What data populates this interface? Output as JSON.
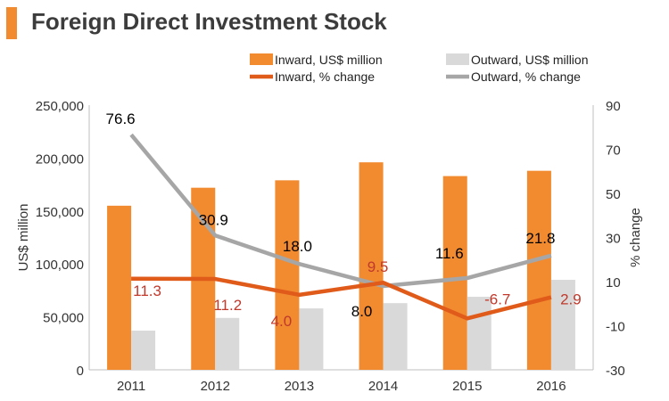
{
  "title": "Foreign Direct Investment Stock",
  "colors": {
    "accent_bar": "#f28b30",
    "inward_bar": "#f28b30",
    "outward_bar": "#d9d9d9",
    "inward_line": "#e05a1a",
    "outward_line": "#a6a6a6",
    "inward_label": "#c0392b",
    "outward_label": "#000000",
    "axis_text": "#333333"
  },
  "chart_data": {
    "type": "bar",
    "categories": [
      "2011",
      "2012",
      "2013",
      "2014",
      "2015",
      "2016"
    ],
    "series": [
      {
        "name": "Inward, US$ million",
        "type": "bar",
        "axis": "left",
        "values": [
          155000,
          172000,
          179000,
          196000,
          183000,
          188000
        ]
      },
      {
        "name": "Outward, US$ million",
        "type": "bar",
        "axis": "left",
        "values": [
          37000,
          49000,
          58000,
          63000,
          69000,
          85000
        ]
      },
      {
        "name": "Inward, % change",
        "type": "line",
        "axis": "right",
        "values": [
          11.3,
          11.2,
          4.0,
          9.5,
          -6.7,
          2.9
        ],
        "labels": [
          "11.3",
          "11.2",
          "4.0",
          "9.5",
          "-6.7",
          "2.9"
        ]
      },
      {
        "name": "Outward, % change",
        "type": "line",
        "axis": "right",
        "values": [
          76.6,
          30.9,
          18.0,
          8.0,
          11.6,
          21.8
        ],
        "labels": [
          "76.6",
          "30.9",
          "18.0",
          "8.0",
          "11.6",
          "21.8"
        ]
      }
    ],
    "ylabel": "US$ million",
    "ylim": [
      0,
      250000
    ],
    "yticks": [
      "0",
      "50,000",
      "100,000",
      "150,000",
      "200,000",
      "250,000"
    ],
    "y2label": "% change",
    "y2lim": [
      -30,
      90
    ],
    "y2ticks": [
      "-30",
      "-10",
      "10",
      "30",
      "50",
      "70",
      "90"
    ],
    "legend": "top"
  }
}
